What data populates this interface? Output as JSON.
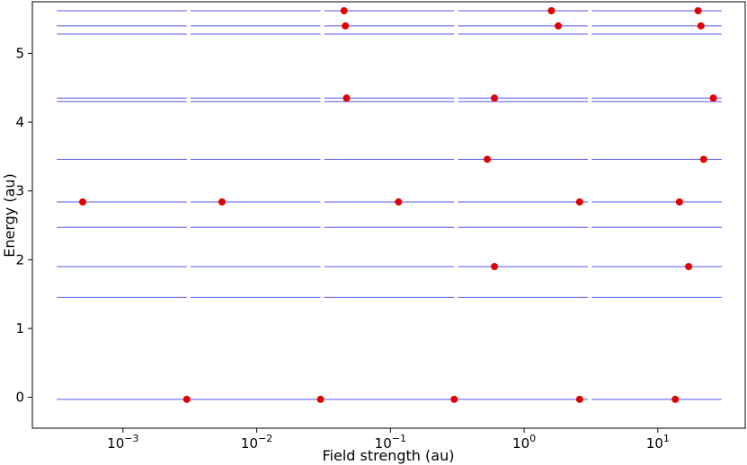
{
  "chart_data": {
    "type": "scatter",
    "xlabel": "Field strength (au)",
    "ylabel": "Energy (au)",
    "xscale": "log",
    "xlim": [
      0.00021,
      45
    ],
    "ylim": [
      -0.45,
      5.75
    ],
    "grid": false,
    "x_ticks": [
      {
        "value": 0.001,
        "base": "10",
        "exp": "−3"
      },
      {
        "value": 0.01,
        "base": "10",
        "exp": "−2"
      },
      {
        "value": 0.1,
        "base": "10",
        "exp": "−1"
      },
      {
        "value": 1,
        "base": "10",
        "exp": "0"
      },
      {
        "value": 10,
        "base": "10",
        "exp": "1"
      }
    ],
    "y_ticks": [
      {
        "value": 0,
        "label": "0"
      },
      {
        "value": 1,
        "label": "1"
      },
      {
        "value": 2,
        "label": "2"
      },
      {
        "value": 3,
        "label": "3"
      },
      {
        "value": 4,
        "label": "4"
      },
      {
        "value": 5,
        "label": "5"
      }
    ],
    "energy_levels": [
      -0.03,
      1.45,
      1.9,
      2.47,
      2.84,
      3.46,
      4.3,
      4.35,
      5.28,
      5.4,
      5.62
    ],
    "field_segments": [
      [
        0.00032,
        0.003
      ],
      [
        0.0032,
        0.03
      ],
      [
        0.032,
        0.3
      ],
      [
        0.32,
        3
      ],
      [
        3.2,
        30
      ]
    ],
    "level_color": "#5555ee",
    "point_color": "#e00000",
    "points": [
      {
        "x": 0.003,
        "y": -0.03
      },
      {
        "x": 0.03,
        "y": -0.03
      },
      {
        "x": 0.3,
        "y": -0.03
      },
      {
        "x": 2.6,
        "y": -0.03
      },
      {
        "x": 13.5,
        "y": -0.03
      },
      {
        "x": 0.6,
        "y": 1.9
      },
      {
        "x": 17,
        "y": 1.9
      },
      {
        "x": 0.0005,
        "y": 2.84
      },
      {
        "x": 0.0055,
        "y": 2.84
      },
      {
        "x": 0.115,
        "y": 2.84
      },
      {
        "x": 2.6,
        "y": 2.84
      },
      {
        "x": 14.5,
        "y": 2.84
      },
      {
        "x": 0.53,
        "y": 3.46
      },
      {
        "x": 22,
        "y": 3.46
      },
      {
        "x": 0.047,
        "y": 4.35
      },
      {
        "x": 0.6,
        "y": 4.35
      },
      {
        "x": 26,
        "y": 4.35
      },
      {
        "x": 0.046,
        "y": 5.4
      },
      {
        "x": 1.8,
        "y": 5.4
      },
      {
        "x": 21,
        "y": 5.4
      },
      {
        "x": 0.045,
        "y": 5.62
      },
      {
        "x": 1.6,
        "y": 5.62
      },
      {
        "x": 20,
        "y": 5.62
      }
    ]
  }
}
